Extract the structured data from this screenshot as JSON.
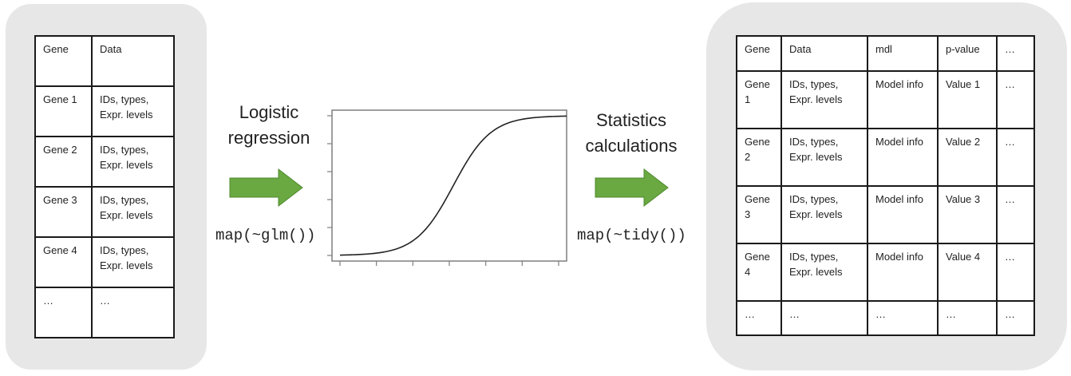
{
  "left_table": {
    "header": [
      "Gene",
      "Data"
    ],
    "rows": [
      [
        "Gene 1",
        "IDs, types, Expr. levels"
      ],
      [
        "Gene 2",
        "IDs, types, Expr. levels"
      ],
      [
        "Gene 3",
        "IDs, types, Expr. levels"
      ],
      [
        "Gene 4",
        "IDs, types, Expr. levels"
      ],
      [
        "…",
        "…"
      ]
    ]
  },
  "step1": {
    "title_line1": "Logistic",
    "title_line2": "regression",
    "code": "map(~glm())"
  },
  "step2": {
    "title_line1": "Statistics",
    "title_line2": "calculations",
    "code": "map(~tidy())"
  },
  "right_table": {
    "header": [
      "Gene",
      "Data",
      "mdl",
      "p-value",
      "…"
    ],
    "rows": [
      [
        "Gene 1",
        "IDs, types, Expr. levels",
        "Model info",
        "Value 1",
        "…"
      ],
      [
        "Gene 2",
        "IDs, types, Expr. levels",
        "Model info",
        "Value 2",
        "…"
      ],
      [
        "Gene 3",
        "IDs, types, Expr. levels",
        "Model info",
        "Value 3",
        "…"
      ],
      [
        "Gene 4",
        "IDs, types, Expr. levels",
        "Model info",
        "Value 4",
        "…"
      ],
      [
        "…",
        "…",
        "…",
        "…",
        "…"
      ]
    ]
  },
  "colors": {
    "panel": "#e7e7e7",
    "arrow": "#6aa842",
    "arrow_border": "#4f8a2e",
    "curve": "#222222"
  },
  "chart_data": {
    "type": "line",
    "curve": "logistic",
    "x_ticks": 7,
    "y_ticks": 6,
    "title": "",
    "xlabel": "",
    "ylabel": ""
  }
}
